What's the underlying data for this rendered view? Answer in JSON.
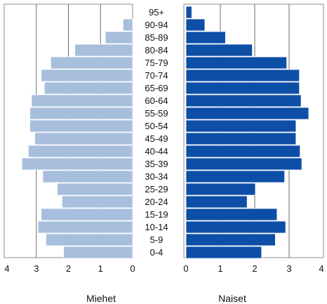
{
  "chart_data": {
    "type": "bar",
    "orientation": "horizontal",
    "layout": "population-pyramid",
    "title": "",
    "categories": [
      "0-4",
      "5-9",
      "10-14",
      "15-19",
      "20-24",
      "25-29",
      "30-34",
      "35-39",
      "40-44",
      "45-49",
      "50-54",
      "55-59",
      "60-64",
      "65-69",
      "70-74",
      "75-79",
      "80-84",
      "85-89",
      "90-94",
      "95+"
    ],
    "series": [
      {
        "name": "Miehet",
        "side": "left",
        "color": "#a7bfdd",
        "values": [
          2.15,
          2.7,
          2.95,
          2.85,
          2.2,
          2.35,
          2.8,
          3.45,
          3.25,
          3.05,
          3.2,
          3.2,
          3.15,
          2.75,
          2.85,
          2.55,
          1.8,
          0.85,
          0.3,
          0.0
        ]
      },
      {
        "name": "Naiset",
        "side": "right",
        "color": "#0d4ea6",
        "values": [
          2.2,
          2.6,
          2.9,
          2.65,
          1.78,
          2.02,
          2.87,
          3.37,
          3.32,
          3.2,
          3.2,
          3.57,
          3.35,
          3.3,
          3.3,
          2.93,
          1.93,
          1.15,
          0.55,
          0.17
        ]
      }
    ],
    "left_axis": {
      "range": [
        4,
        0
      ],
      "ticks": [
        "4",
        "3",
        "2",
        "1",
        "0"
      ],
      "label": "Miehet"
    },
    "right_axis": {
      "range": [
        0,
        4
      ],
      "ticks": [
        "0",
        "1",
        "2",
        "3",
        "4"
      ],
      "label": "Naiset"
    },
    "grid": true,
    "legend": "none"
  }
}
